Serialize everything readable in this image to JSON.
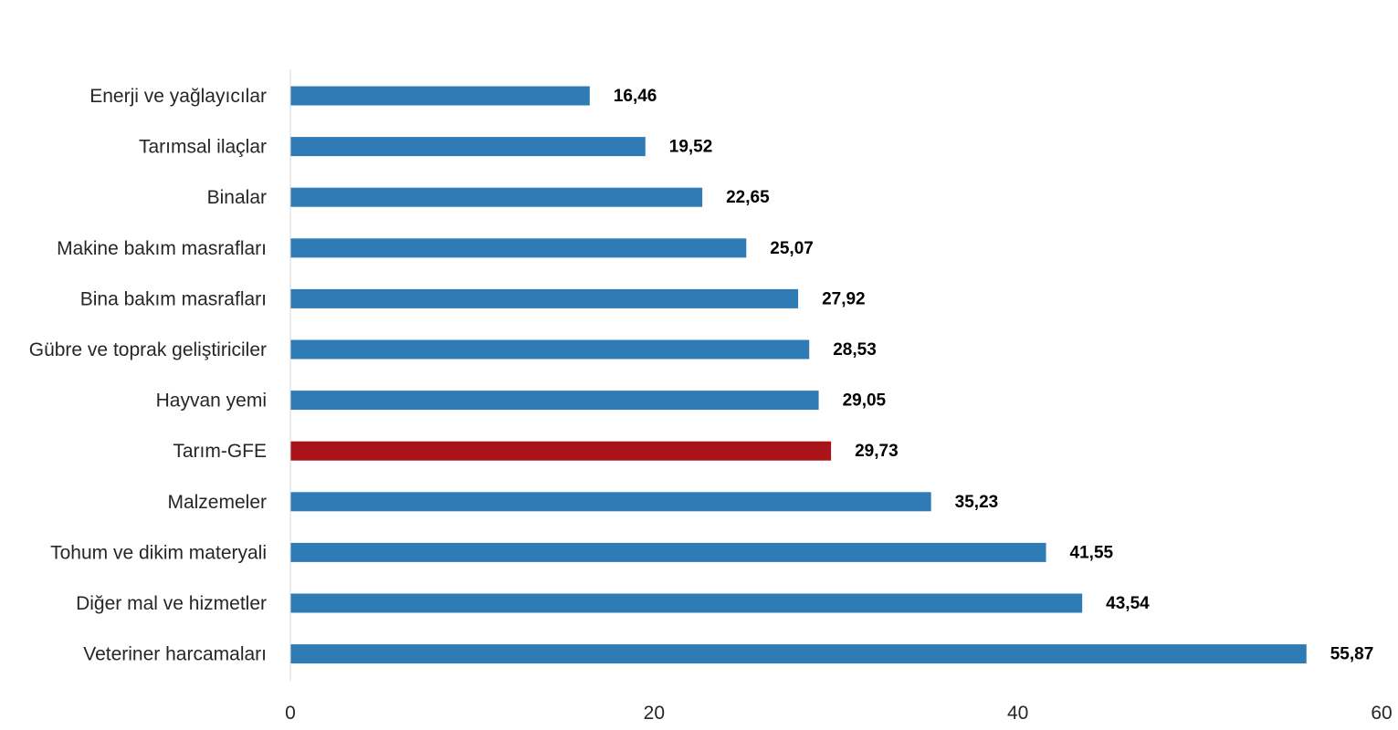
{
  "chart_data": {
    "type": "bar",
    "orientation": "horizontal",
    "categories": [
      "Enerji  ve yağlayıcılar",
      "Tarımsal ilaçlar",
      "Binalar",
      "Makine bakım masrafları",
      "Bina bakım masrafları",
      "Gübre ve toprak geliştiriciler",
      "Hayvan yemi",
      "Tarım-GFE",
      "Malzemeler",
      "Tohum ve dikim materyali",
      "Diğer mal ve hizmetler",
      "Veteriner harcamaları"
    ],
    "values": [
      16.46,
      19.52,
      22.65,
      25.07,
      27.92,
      28.53,
      29.05,
      29.73,
      35.23,
      41.55,
      43.54,
      55.87
    ],
    "value_labels": [
      "16,46",
      "19,52",
      "22,65",
      "25,07",
      "27,92",
      "28,53",
      "29,05",
      "29,73",
      "35,23",
      "41,55",
      "43,54",
      "55,87"
    ],
    "highlight_category": "Tarım-GFE",
    "colors": {
      "bar": "#2E7BB6",
      "highlight": "#A8141A",
      "axis": "#D9D9D9"
    },
    "xlim": [
      0,
      60
    ],
    "x_ticks": [
      0,
      20,
      40,
      60
    ],
    "x_tick_labels": [
      "0",
      "20",
      "40",
      "60"
    ],
    "title": "",
    "xlabel": "",
    "ylabel": "",
    "grid": false,
    "legend": "none"
  }
}
